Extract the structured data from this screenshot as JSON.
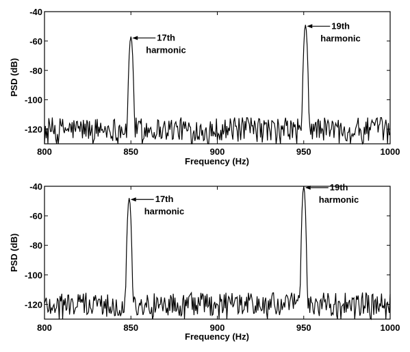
{
  "chart_data": [
    {
      "type": "line",
      "xlabel": "Frequency (Hz)",
      "ylabel": "PSD (dB)",
      "xlim": [
        800,
        1000
      ],
      "ylim": [
        -130,
        -40
      ],
      "xticks": [
        "800",
        "850",
        "900",
        "950",
        "1000"
      ],
      "yticks": [
        "-40",
        "-60",
        "-80",
        "-100",
        "-120"
      ],
      "grid": false,
      "noise_floor_db": -120,
      "peaks": [
        {
          "x": 850,
          "y": -57
        },
        {
          "x": 951,
          "y": -49
        }
      ],
      "annotations": [
        {
          "line1": "17th",
          "line2": "harmonic",
          "x": 850,
          "y": -57
        },
        {
          "line1": "19th",
          "line2": "harmonic",
          "x": 951,
          "y": -49
        }
      ]
    },
    {
      "type": "line",
      "xlabel": "Frequency (Hz)",
      "ylabel": "PSD (dB)",
      "xlim": [
        800,
        1000
      ],
      "ylim": [
        -130,
        -40
      ],
      "xticks": [
        "800",
        "850",
        "900",
        "950",
        "1000"
      ],
      "yticks": [
        "-40",
        "-60",
        "-80",
        "-100",
        "-120"
      ],
      "grid": false,
      "noise_floor_db": -120,
      "peaks": [
        {
          "x": 849,
          "y": -48
        },
        {
          "x": 950,
          "y": -40
        }
      ],
      "annotations": [
        {
          "line1": "17th",
          "line2": "harmonic",
          "x": 849,
          "y": -48
        },
        {
          "line1": "19th",
          "line2": "harmonic",
          "x": 950,
          "y": -40
        }
      ]
    }
  ]
}
